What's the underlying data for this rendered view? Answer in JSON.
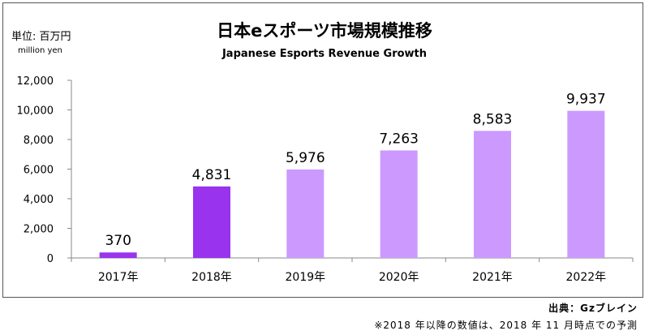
{
  "header": {
    "title_jp": "日本eスポーツ市場規模推移",
    "title_en": "Japanese Esports Revenue Growth",
    "unit_jp": "単位: 百万円",
    "unit_en": "million yen"
  },
  "footer": {
    "source": "出典：Gzブレイン",
    "note": "※2018 年以降の数値は、2018 年 11 月時点での予測"
  },
  "colors": {
    "actual": "#9933ee",
    "forecast": "#cc99ff",
    "grid_line": "#bbbbbb",
    "frame": "#555555"
  },
  "chart_data": {
    "type": "bar",
    "title": "日本eスポーツ市場規模推移",
    "subtitle": "Japanese Esports Revenue Growth",
    "xlabel": "",
    "ylabel": "単位: 百万円",
    "categories": [
      "2017年",
      "2018年",
      "2019年",
      "2020年",
      "2021年",
      "2022年"
    ],
    "values": [
      370,
      4831,
      5976,
      7263,
      8583,
      9937
    ],
    "data_labels": [
      "370",
      "4,831",
      "5,976",
      "7,263",
      "8,583",
      "9,937"
    ],
    "bar_status": [
      "actual",
      "actual",
      "forecast",
      "forecast",
      "forecast",
      "forecast"
    ],
    "ylim": [
      0,
      12000
    ],
    "y_ticks": [
      0,
      2000,
      4000,
      6000,
      8000,
      10000,
      12000
    ],
    "y_tick_labels": [
      "0",
      "2,000",
      "4,000",
      "6,000",
      "8,000",
      "10,000",
      "12,000"
    ],
    "grid": false,
    "legend": "none"
  }
}
